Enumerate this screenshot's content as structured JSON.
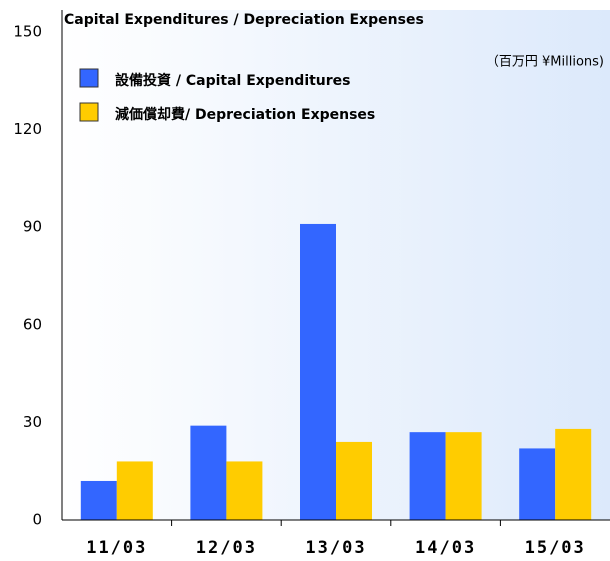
{
  "chart_data": {
    "type": "bar",
    "title": "Capital Expenditures / Depreciation Expenses",
    "unit_note": "（百万円 ¥Millions)",
    "categories": [
      "11/03",
      "12/03",
      "13/03",
      "14/03",
      "15/03"
    ],
    "series": [
      {
        "name": "設備投資 / Capital Expenditures",
        "color": "#3366ff",
        "values": [
          12,
          29,
          91,
          27,
          22
        ]
      },
      {
        "name": "減価償却費/ Depreciation Expenses",
        "color": "#ffcc00",
        "values": [
          18,
          18,
          24,
          27,
          28
        ]
      }
    ],
    "ylim": [
      0,
      150
    ],
    "yticks": [
      0,
      30,
      60,
      90,
      120,
      150
    ],
    "grid": false
  }
}
